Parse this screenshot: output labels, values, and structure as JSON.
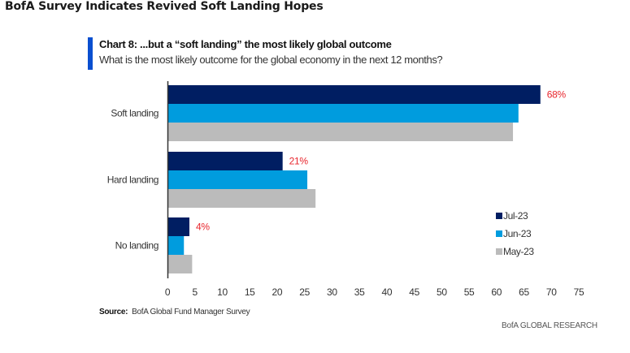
{
  "page": {
    "title": "BofA Survey Indicates Revived Soft Landing Hopes"
  },
  "chart_data": {
    "type": "bar",
    "orientation": "horizontal",
    "title": "Chart 8: ...but a “soft landing” the most likely global outcome",
    "subtitle": "What is the most likely outcome for the global economy in the next 12 months?",
    "categories": [
      "Soft landing",
      "Hard landing",
      "No landing"
    ],
    "series": [
      {
        "name": "Jul-23",
        "color": "#001e62",
        "values": [
          68,
          21,
          4
        ]
      },
      {
        "name": "Jun-23",
        "color": "#009cde",
        "values": [
          64,
          25.5,
          3
        ]
      },
      {
        "name": "May-23",
        "color": "#bbbbbb",
        "values": [
          63,
          27,
          4.5
        ]
      }
    ],
    "data_labels": [
      {
        "category": "Soft landing",
        "series": "Jul-23",
        "text": "68%"
      },
      {
        "category": "Hard landing",
        "series": "Jul-23",
        "text": "21%"
      },
      {
        "category": "No landing",
        "series": "Jul-23",
        "text": "4%"
      }
    ],
    "data_label_color": "#e8262d",
    "xlim": [
      0,
      75
    ],
    "xticks": [
      0,
      5,
      10,
      15,
      20,
      25,
      30,
      35,
      40,
      45,
      50,
      55,
      60,
      65,
      70,
      75
    ],
    "xlabel": "",
    "ylabel": "",
    "grid": false,
    "legend_position": "right"
  },
  "footer": {
    "source_label": "Source:",
    "source_text": "BofA Global Fund Manager Survey",
    "brand": "BofA GLOBAL RESEARCH"
  }
}
